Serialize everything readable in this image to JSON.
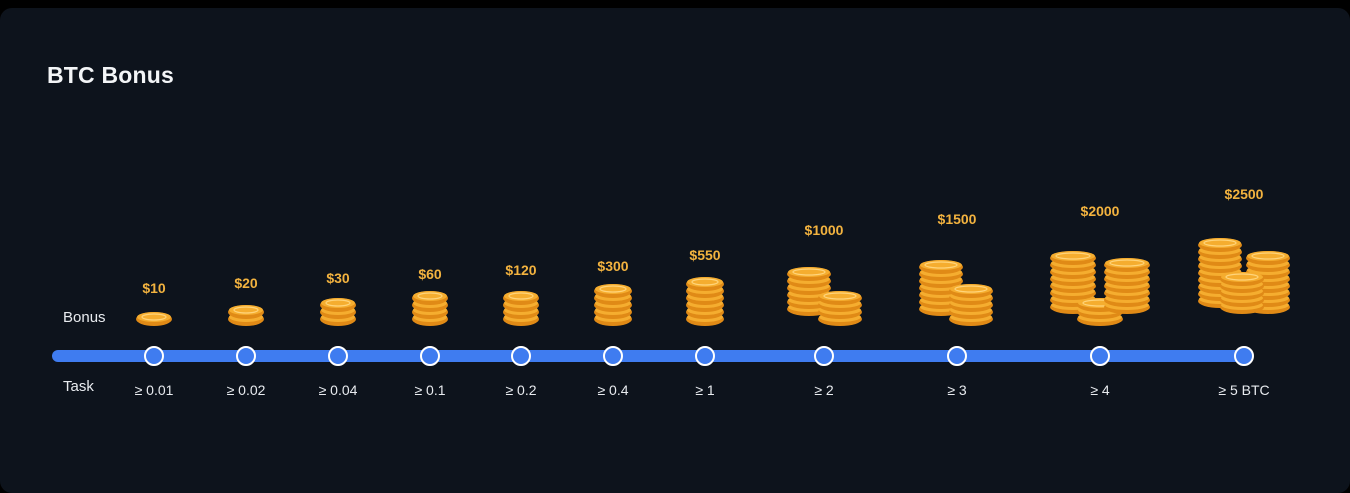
{
  "title": "BTC Bonus",
  "row_labels": {
    "bonus": "Bonus",
    "task": "Task"
  },
  "colors": {
    "track": "#3f7cf0",
    "node": "#3f7cf0",
    "node_border": "#ffffff",
    "amount": "#f3b33f",
    "coin_face": "#f5ad2f",
    "coin_edge": "#e08a16",
    "coin_highlight": "#ffd47a"
  },
  "milestones": [
    {
      "bonus": "$10",
      "task": "≥ 0.01",
      "coin_icon": "coin-stack-icon"
    },
    {
      "bonus": "$20",
      "task": "≥ 0.02",
      "coin_icon": "coin-stack-icon"
    },
    {
      "bonus": "$30",
      "task": "≥ 0.04",
      "coin_icon": "coin-stack-icon"
    },
    {
      "bonus": "$60",
      "task": "≥ 0.1",
      "coin_icon": "coin-stack-icon"
    },
    {
      "bonus": "$120",
      "task": "≥ 0.2",
      "coin_icon": "coin-stack-icon"
    },
    {
      "bonus": "$300",
      "task": "≥ 0.4",
      "coin_icon": "coin-stack-icon"
    },
    {
      "bonus": "$550",
      "task": "≥ 1",
      "coin_icon": "coin-stack-icon"
    },
    {
      "bonus": "$1000",
      "task": "≥ 2",
      "coin_icon": "coin-pile-icon"
    },
    {
      "bonus": "$1500",
      "task": "≥ 3",
      "coin_icon": "coin-pile-icon"
    },
    {
      "bonus": "$2000",
      "task": "≥ 4",
      "coin_icon": "coin-pile-icon"
    },
    {
      "bonus": "$2500",
      "task": "≥ 5 BTC",
      "coin_icon": "coin-pile-icon"
    }
  ]
}
